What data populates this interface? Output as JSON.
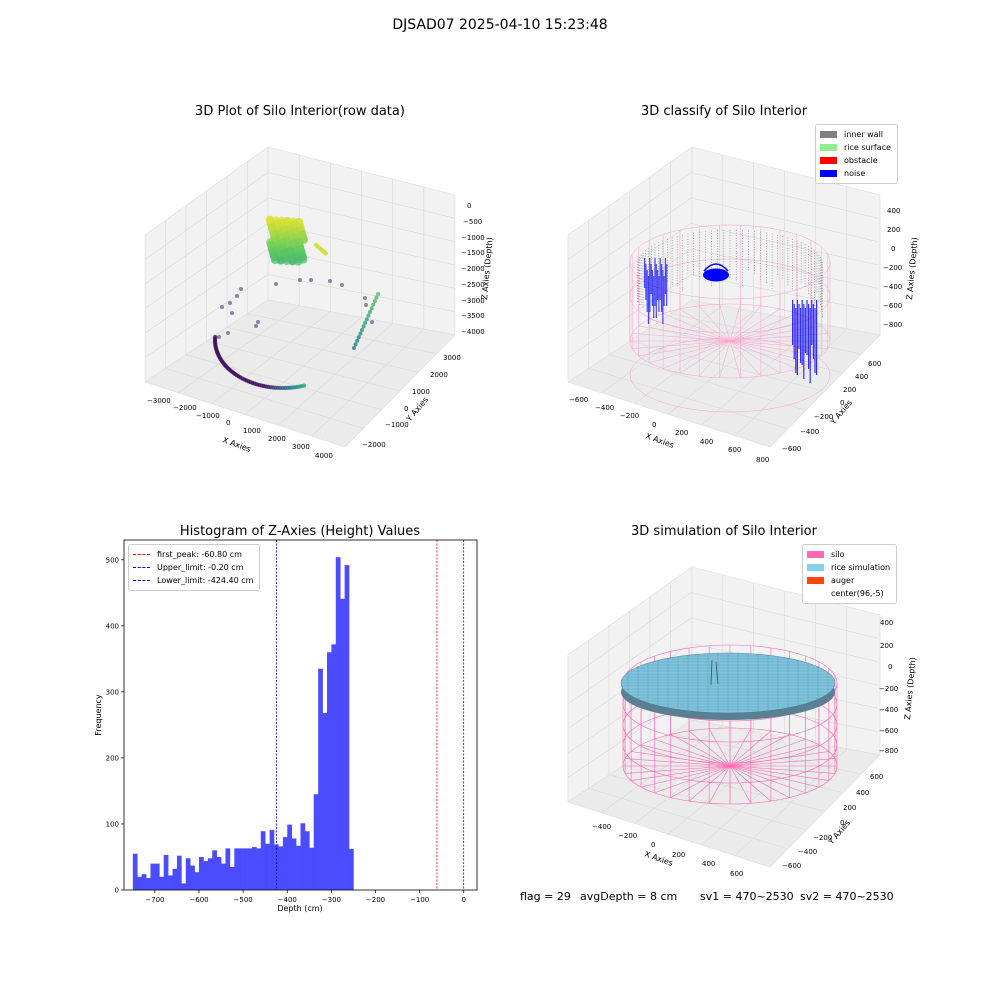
{
  "suptitle": "DJSAD07 2025-04-10 15:23:48",
  "colors": {
    "hist_bar": "#4b4bff",
    "first_peak": "#ff0000",
    "limit": "#0000ff",
    "inner_wall": "#808080",
    "rice_surface": "#90ee90",
    "obstacle": "#ff0000",
    "noise": "#0000ff",
    "silo": "#ff69b4",
    "rice_simulation": "#87ceeb",
    "auger": "#ff4500"
  },
  "panels": {
    "raw": {
      "title": "3D Plot of Silo Interior(row data)",
      "xlabel": "X Axies",
      "ylabel": "Y Axies",
      "zlabel": "Z Axies (Depth)",
      "xticks": [
        "−3000",
        "−2000",
        "−1000",
        "0",
        "1000",
        "2000",
        "3000",
        "4000"
      ],
      "yticks": [
        "−2000",
        "−1000",
        "0",
        "1000",
        "2000",
        "3000"
      ],
      "zticks": [
        "0",
        "−500",
        "−1000",
        "−1500",
        "−2000",
        "−2500",
        "−3000",
        "−3500",
        "−4000"
      ]
    },
    "classify": {
      "title": "3D classify of Silo Interior",
      "xlabel": "X Axies",
      "ylabel": "Y Axies",
      "zlabel": "Z Axies (Depth)",
      "xticks": [
        "−600",
        "−400",
        "−200",
        "0",
        "200",
        "400",
        "600",
        "800"
      ],
      "yticks": [
        "−600",
        "−400",
        "−200",
        "0",
        "200",
        "400",
        "600"
      ],
      "zticks": [
        "400",
        "200",
        "0",
        "−200",
        "−400",
        "−600",
        "−800"
      ],
      "legend": [
        "inner wall",
        "rice surface",
        "obstacle",
        "noise"
      ]
    },
    "simulation": {
      "title": "3D simulation of Silo Interior",
      "xlabel": "X Axies",
      "ylabel": "Y Axies",
      "zlabel": "Z Axies (Depth)",
      "xticks": [
        "−400",
        "−200",
        "0",
        "200",
        "400",
        "600"
      ],
      "yticks": [
        "−600",
        "−400",
        "−200",
        "0",
        "200",
        "400",
        "600"
      ],
      "zticks": [
        "400",
        "200",
        "0",
        "−200",
        "−400",
        "−600",
        "−800"
      ],
      "legend": [
        "silo",
        "rice simulation",
        "auger",
        "center(96,-5)"
      ]
    }
  },
  "footer": {
    "flag": "flag = 29",
    "avg": "avgDepth = 8 cm",
    "sv1": "sv1 = 470~2530",
    "sv2": "sv2 = 470~2530"
  },
  "chart_data": {
    "type": "bar",
    "title": "Histogram of Z-Axies (Height) Values",
    "xlabel": "Depth (cm)",
    "ylabel": "Frequency",
    "xlim": [
      -770,
      30
    ],
    "ylim": [
      0,
      530
    ],
    "xticks": [
      -700,
      -600,
      -500,
      -400,
      -300,
      -200,
      -100,
      0
    ],
    "yticks": [
      0,
      100,
      200,
      300,
      400,
      500
    ],
    "bin_start": -750,
    "bin_width": 10,
    "values": [
      55,
      20,
      24,
      18,
      40,
      40,
      20,
      53,
      22,
      32,
      52,
      10,
      48,
      37,
      27,
      50,
      44,
      48,
      60,
      50,
      40,
      63,
      35,
      63,
      63,
      63,
      63,
      65,
      63,
      89,
      70,
      91,
      69,
      66,
      80,
      99,
      78,
      67,
      101,
      89,
      64,
      145,
      335,
      268,
      360,
      372,
      504,
      441,
      492,
      62
    ],
    "lines": [
      {
        "name": "first_peak",
        "label": "first_peak: -60.80 cm",
        "x": -60.8,
        "color": "#ff0000"
      },
      {
        "name": "upper_limit",
        "label": "Upper_limit: -0.20 cm",
        "x": -0.2,
        "color": "#0000ff"
      },
      {
        "name": "lower_limit",
        "label": "Lower_limit: -424.40 cm",
        "x": -424.4,
        "color": "#0000ff"
      }
    ]
  }
}
